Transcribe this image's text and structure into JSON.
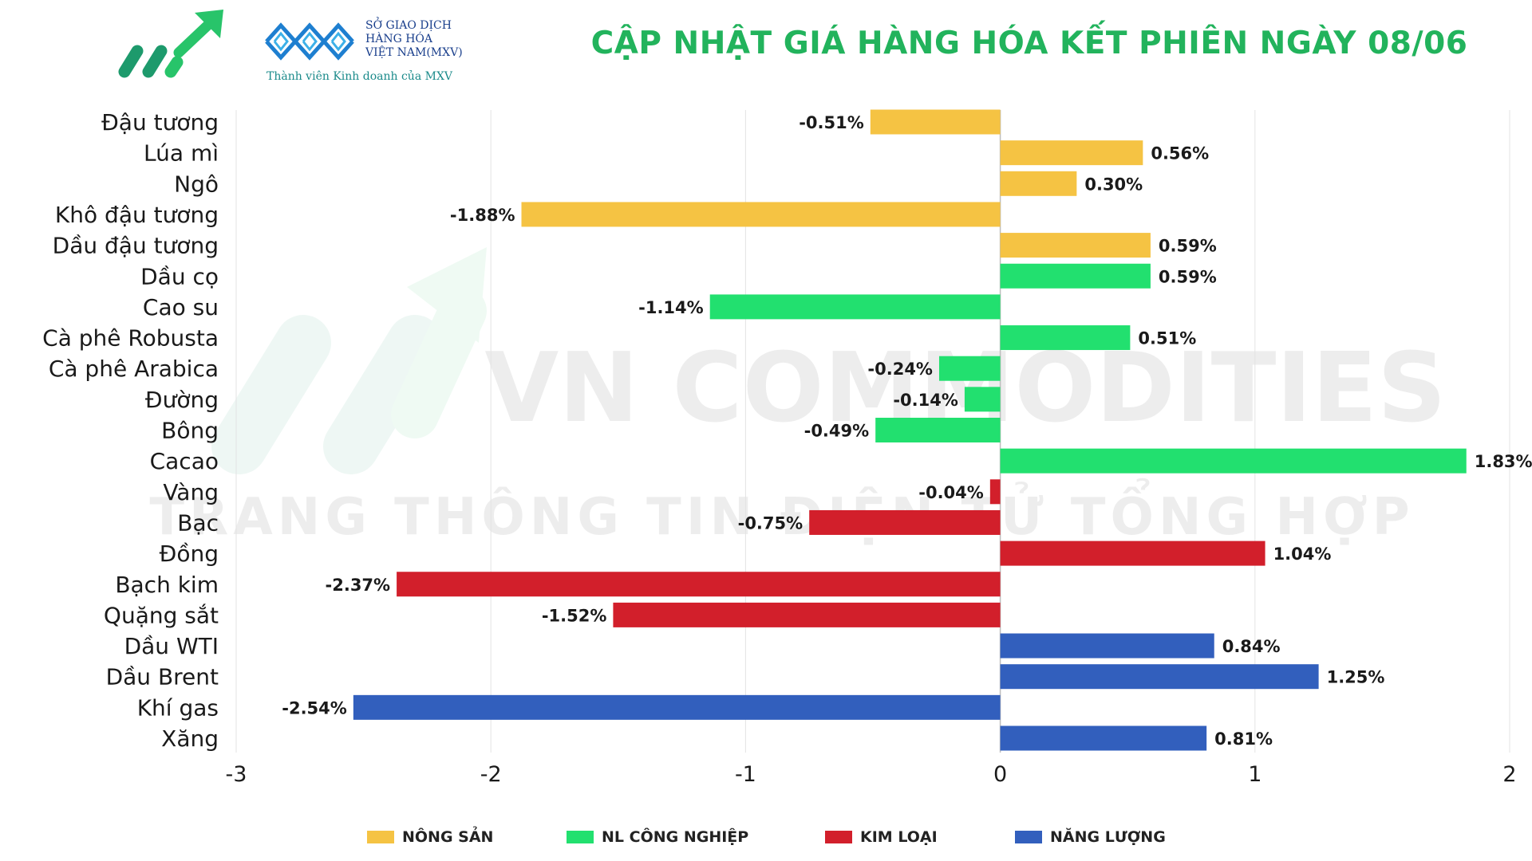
{
  "header": {
    "title": "CẬP NHẬT GIÁ HÀNG HÓA KẾT PHIÊN NGÀY 08/06",
    "mxv": {
      "line1": "SỞ GIAO DỊCH",
      "line2": "HÀNG HÓA",
      "line3": "VIỆT NAM(MXV)",
      "tagline": "Thành viên Kinh doanh của MXV"
    }
  },
  "watermark": {
    "line1": "VN COMMODITIES",
    "line2": "TRANG THÔNG TIN ĐIỆN TỬ TỔNG HỢP"
  },
  "colors": {
    "nong_san": "#f5c343",
    "nl_cong_nghiep": "#22e06f",
    "kim_loai": "#d21f2b",
    "nang_luong": "#325fbd",
    "title": "#22b35c"
  },
  "chart_data": {
    "type": "bar",
    "orientation": "horizontal",
    "xlim": [
      -3,
      2
    ],
    "xticks": [
      "-3",
      "-2",
      "-1",
      "0",
      "1",
      "2"
    ],
    "grid": true,
    "legend_position": "bottom",
    "groups": [
      {
        "key": "nong_san",
        "name": "NÔNG SẢN"
      },
      {
        "key": "nl_cong_nghiep",
        "name": "NL CÔNG NGHIỆP"
      },
      {
        "key": "kim_loai",
        "name": "KIM LOẠI"
      },
      {
        "key": "nang_luong",
        "name": "NĂNG LƯỢNG"
      }
    ],
    "items": [
      {
        "category": "Đậu tương",
        "value": -0.51,
        "label": "-0.51%",
        "group": "nong_san"
      },
      {
        "category": "Lúa mì",
        "value": 0.56,
        "label": "0.56%",
        "group": "nong_san"
      },
      {
        "category": "Ngô",
        "value": 0.3,
        "label": "0.30%",
        "group": "nong_san"
      },
      {
        "category": "Khô đậu tương",
        "value": -1.88,
        "label": "-1.88%",
        "group": "nong_san"
      },
      {
        "category": "Dầu đậu tương",
        "value": 0.59,
        "label": "0.59%",
        "group": "nong_san"
      },
      {
        "category": "Dầu cọ",
        "value": 0.59,
        "label": "0.59%",
        "group": "nl_cong_nghiep"
      },
      {
        "category": "Cao su",
        "value": -1.14,
        "label": "-1.14%",
        "group": "nl_cong_nghiep"
      },
      {
        "category": "Cà phê Robusta",
        "value": 0.51,
        "label": "0.51%",
        "group": "nl_cong_nghiep"
      },
      {
        "category": "Cà phê Arabica",
        "value": -0.24,
        "label": "-0.24%",
        "group": "nl_cong_nghiep"
      },
      {
        "category": "Đường",
        "value": -0.14,
        "label": "-0.14%",
        "group": "nl_cong_nghiep"
      },
      {
        "category": "Bông",
        "value": -0.49,
        "label": "-0.49%",
        "group": "nl_cong_nghiep"
      },
      {
        "category": "Cacao",
        "value": 1.83,
        "label": "1.83%",
        "group": "nl_cong_nghiep"
      },
      {
        "category": "Vàng",
        "value": -0.04,
        "label": "-0.04%",
        "group": "kim_loai"
      },
      {
        "category": "Bạc",
        "value": -0.75,
        "label": "-0.75%",
        "group": "kim_loai"
      },
      {
        "category": "Đồng",
        "value": 1.04,
        "label": "1.04%",
        "group": "kim_loai"
      },
      {
        "category": "Bạch kim",
        "value": -2.37,
        "label": "-2.37%",
        "group": "kim_loai"
      },
      {
        "category": "Quặng sắt",
        "value": -1.52,
        "label": "-1.52%",
        "group": "kim_loai"
      },
      {
        "category": "Dầu WTI",
        "value": 0.84,
        "label": "0.84%",
        "group": "nang_luong"
      },
      {
        "category": "Dầu Brent",
        "value": 1.25,
        "label": "1.25%",
        "group": "nang_luong"
      },
      {
        "category": "Khí gas",
        "value": -2.54,
        "label": "-2.54%",
        "group": "nang_luong"
      },
      {
        "category": "Xăng",
        "value": 0.81,
        "label": "0.81%",
        "group": "nang_luong"
      }
    ]
  }
}
